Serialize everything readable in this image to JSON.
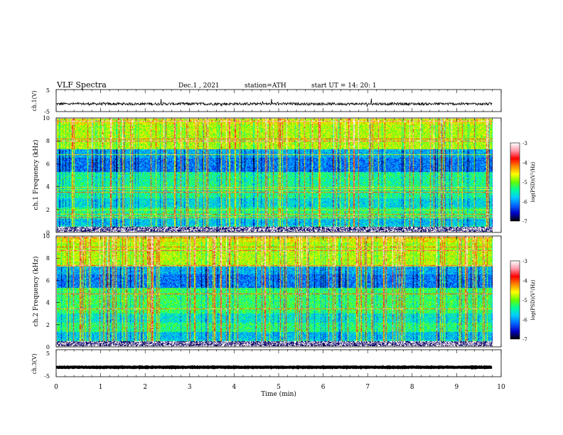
{
  "header": {
    "title": "VLF  Spectra",
    "date": "Dec.1  , 2021",
    "station": "station=ATH",
    "start": "start  UT  =   14: 20: 1"
  },
  "chart_data": [
    {
      "type": "line",
      "panel": "ch1-waveform",
      "ylabel": "ch.1(V)",
      "ylim": [
        -5,
        5
      ],
      "yticks": [
        "5",
        "-5"
      ],
      "xlim": [
        0,
        10
      ],
      "baseline": -1.5,
      "amplitude": 0.6
    },
    {
      "type": "heatmap",
      "panel": "ch1-spectrogram",
      "ylabel": "ch.1 Frequency (kHz)",
      "ylim": [
        0,
        10
      ],
      "yticks": [
        "0",
        "2",
        "4",
        "6",
        "8",
        "10"
      ],
      "xlim": [
        0,
        9.8
      ],
      "colorbar": {
        "label": "log(PSD)(V²/Hz)",
        "range": [
          -7,
          -3
        ],
        "ticks": [
          "-3",
          "-4",
          "-5",
          "-6",
          "-7"
        ]
      }
    },
    {
      "type": "heatmap",
      "panel": "ch2-spectrogram",
      "ylabel": "ch.2 Frequency (kHz)",
      "ylim": [
        0,
        10
      ],
      "yticks": [
        "0",
        "2",
        "4",
        "6",
        "8",
        "10"
      ],
      "xlim": [
        0,
        9.8
      ],
      "colorbar": {
        "label": "log(PSD)(V²/Hz)",
        "range": [
          -7,
          -3
        ],
        "ticks": [
          "-3",
          "-4",
          "-5",
          "-6",
          "-7"
        ]
      }
    },
    {
      "type": "line",
      "panel": "ch3-waveform",
      "ylabel": "ch.3(V)",
      "ylim": [
        -5,
        5
      ],
      "yticks": [
        "5",
        "-5"
      ],
      "xlim": [
        0,
        10
      ],
      "baseline": -1.5,
      "amplitude": 0.1
    }
  ],
  "xaxis": {
    "label": "Time  (min)",
    "range": [
      0,
      10
    ],
    "ticks": [
      "0",
      "1",
      "2",
      "3",
      "4",
      "5",
      "6",
      "7",
      "8",
      "9",
      "10"
    ]
  },
  "colors": {
    "palette": [
      "#000000",
      "#0000c8",
      "#0066ff",
      "#00ccff",
      "#00ff99",
      "#66ff00",
      "#ffff00",
      "#ff8800",
      "#ff0000",
      "#ff99aa",
      "#ffffff"
    ]
  }
}
